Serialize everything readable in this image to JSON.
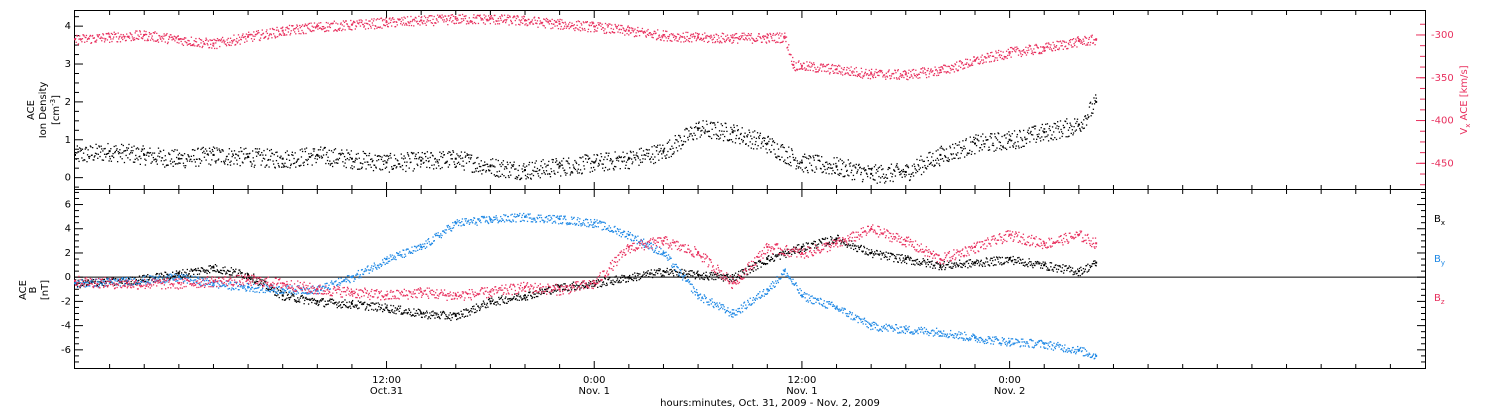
{
  "colors": {
    "black": "#000000",
    "pink": "#e8305e",
    "blue": "#1e88e5"
  },
  "x_axis": {
    "label": "hours:minutes, Oct. 31, 2009 - Nov. 2, 2009",
    "range_hours": [
      -6,
      72
    ],
    "major_ticks": [
      {
        "t": 12,
        "time": "12:00",
        "date": "Oct.31"
      },
      {
        "t": 24,
        "time": "0:00",
        "date": "Nov. 1"
      },
      {
        "t": 36,
        "time": "12:00",
        "date": "Nov. 1"
      },
      {
        "t": 48,
        "time": "0:00",
        "date": "Nov. 2"
      }
    ],
    "minor_tick_hours": 2
  },
  "top_panel": {
    "left_label": {
      "line1": "ACE",
      "line2": "Ion Density",
      "unit_pre": "[cm",
      "unit_sup": "-3",
      "unit_post": "]"
    },
    "left_ticks": [
      "0",
      "1",
      "2",
      "3",
      "4"
    ],
    "right_label": {
      "pre": "V",
      "sub": "x",
      "mid": " ACE",
      "unit": " [km/s]"
    },
    "right_ticks": [
      "-300",
      "-350",
      "-400",
      "-450"
    ]
  },
  "bottom_panel": {
    "left_label": {
      "line1": "ACE",
      "line2": "B",
      "unit": "[nT]"
    },
    "left_ticks": [
      "6",
      "4",
      "2",
      "0",
      "-2",
      "-4",
      "-6"
    ],
    "legend": [
      {
        "pre": "B",
        "sub": "x",
        "color": "#000000"
      },
      {
        "pre": "B",
        "sub": "y",
        "color": "#1e88e5"
      },
      {
        "pre": "B",
        "sub": "z",
        "color": "#e8305e"
      }
    ]
  },
  "chart_data": [
    {
      "type": "scatter",
      "xlabel": "hours:minutes, Oct. 31, 2009 - Nov. 2, 2009",
      "xlim": [
        -6,
        72
      ],
      "series": [
        {
          "name": "Ion Density",
          "color": "#000000",
          "ylim": [
            -0.3,
            4.4
          ],
          "points": [
            [
              -6,
              0.6
            ],
            [
              -4,
              0.7
            ],
            [
              -2,
              0.6
            ],
            [
              0,
              0.5
            ],
            [
              2,
              0.6
            ],
            [
              4,
              0.55
            ],
            [
              6,
              0.5
            ],
            [
              8,
              0.6
            ],
            [
              10,
              0.5
            ],
            [
              12,
              0.4
            ],
            [
              14,
              0.45
            ],
            [
              16,
              0.5
            ],
            [
              18,
              0.3
            ],
            [
              20,
              0.2
            ],
            [
              22,
              0.3
            ],
            [
              24,
              0.4
            ],
            [
              26,
              0.5
            ],
            [
              28,
              0.7
            ],
            [
              30,
              1.3
            ],
            [
              32,
              1.2
            ],
            [
              34,
              0.9
            ],
            [
              36,
              0.4
            ],
            [
              38,
              0.3
            ],
            [
              40,
              0.1
            ],
            [
              42,
              0.15
            ],
            [
              44,
              0.6
            ],
            [
              46,
              0.9
            ],
            [
              48,
              1.0
            ],
            [
              50,
              1.2
            ],
            [
              52,
              1.4
            ],
            [
              53,
              2.0
            ]
          ]
        },
        {
          "name": "V_x ACE",
          "color": "#e8305e",
          "ylim": [
            -480,
            -272
          ],
          "points": [
            [
              -6,
              -305
            ],
            [
              -4,
              -302
            ],
            [
              -2,
              -300
            ],
            [
              0,
              -305
            ],
            [
              2,
              -310
            ],
            [
              4,
              -302
            ],
            [
              6,
              -295
            ],
            [
              8,
              -290
            ],
            [
              10,
              -288
            ],
            [
              12,
              -285
            ],
            [
              14,
              -283
            ],
            [
              16,
              -281
            ],
            [
              18,
              -281
            ],
            [
              20,
              -283
            ],
            [
              22,
              -287
            ],
            [
              24,
              -290
            ],
            [
              26,
              -295
            ],
            [
              28,
              -300
            ],
            [
              30,
              -303
            ],
            [
              32,
              -303
            ],
            [
              34,
              -303
            ],
            [
              35,
              -302
            ],
            [
              35.5,
              -335
            ],
            [
              36,
              -336
            ],
            [
              38,
              -340
            ],
            [
              40,
              -345
            ],
            [
              42,
              -346
            ],
            [
              44,
              -341
            ],
            [
              46,
              -330
            ],
            [
              48,
              -320
            ],
            [
              50,
              -315
            ],
            [
              52,
              -307
            ],
            [
              53,
              -305
            ]
          ]
        }
      ]
    },
    {
      "type": "scatter",
      "ylabel": "ACE B [nT]",
      "xlim": [
        -6,
        72
      ],
      "ylim": [
        -7.5,
        7.2
      ],
      "series": [
        {
          "name": "Bx",
          "color": "#000000",
          "points": [
            [
              -6,
              -0.5
            ],
            [
              -3,
              -0.3
            ],
            [
              0,
              0.3
            ],
            [
              2,
              0.8
            ],
            [
              4,
              0.2
            ],
            [
              6,
              -1.5
            ],
            [
              8,
              -2.0
            ],
            [
              10,
              -2.2
            ],
            [
              12,
              -2.5
            ],
            [
              14,
              -3.0
            ],
            [
              16,
              -3.2
            ],
            [
              18,
              -2.0
            ],
            [
              20,
              -1.5
            ],
            [
              22,
              -0.8
            ],
            [
              24,
              -0.5
            ],
            [
              26,
              0.0
            ],
            [
              28,
              0.5
            ],
            [
              30,
              0.2
            ],
            [
              32,
              0.0
            ],
            [
              34,
              1.5
            ],
            [
              36,
              2.5
            ],
            [
              38,
              3.2
            ],
            [
              40,
              2.0
            ],
            [
              42,
              1.5
            ],
            [
              44,
              1.0
            ],
            [
              46,
              1.2
            ],
            [
              48,
              1.5
            ],
            [
              50,
              1.0
            ],
            [
              52,
              0.5
            ],
            [
              53,
              1.2
            ]
          ]
        },
        {
          "name": "By",
          "color": "#1e88e5",
          "points": [
            [
              -6,
              -0.5
            ],
            [
              -3,
              -0.3
            ],
            [
              0,
              0.0
            ],
            [
              2,
              -0.5
            ],
            [
              4,
              -0.8
            ],
            [
              6,
              -1.0
            ],
            [
              8,
              -1.0
            ],
            [
              10,
              0.0
            ],
            [
              12,
              1.5
            ],
            [
              14,
              2.5
            ],
            [
              16,
              4.5
            ],
            [
              18,
              4.8
            ],
            [
              20,
              5.0
            ],
            [
              22,
              4.8
            ],
            [
              24,
              4.5
            ],
            [
              26,
              3.5
            ],
            [
              28,
              2.0
            ],
            [
              30,
              -1.5
            ],
            [
              32,
              -3.0
            ],
            [
              34,
              -1.0
            ],
            [
              35,
              0.5
            ],
            [
              36,
              -1.5
            ],
            [
              38,
              -2.5
            ],
            [
              40,
              -4.0
            ],
            [
              42,
              -4.3
            ],
            [
              44,
              -4.5
            ],
            [
              46,
              -5.0
            ],
            [
              48,
              -5.3
            ],
            [
              50,
              -5.5
            ],
            [
              52,
              -6.0
            ],
            [
              53,
              -6.5
            ]
          ]
        },
        {
          "name": "Bz",
          "color": "#e8305e",
          "points": [
            [
              -6,
              -0.3
            ],
            [
              -3,
              -0.5
            ],
            [
              0,
              -0.5
            ],
            [
              2,
              -0.3
            ],
            [
              4,
              -0.2
            ],
            [
              6,
              -0.5
            ],
            [
              8,
              -1.0
            ],
            [
              10,
              -1.2
            ],
            [
              12,
              -1.5
            ],
            [
              14,
              -1.2
            ],
            [
              16,
              -1.5
            ],
            [
              18,
              -1.2
            ],
            [
              20,
              -0.8
            ],
            [
              22,
              -1.0
            ],
            [
              24,
              -0.5
            ],
            [
              26,
              2.5
            ],
            [
              28,
              3.0
            ],
            [
              30,
              2.0
            ],
            [
              32,
              -0.5
            ],
            [
              34,
              2.5
            ],
            [
              36,
              2.0
            ],
            [
              38,
              2.8
            ],
            [
              40,
              4.0
            ],
            [
              42,
              3.0
            ],
            [
              44,
              1.5
            ],
            [
              46,
              2.5
            ],
            [
              48,
              3.5
            ],
            [
              50,
              2.8
            ],
            [
              52,
              3.5
            ],
            [
              53,
              2.8
            ]
          ]
        }
      ]
    }
  ]
}
